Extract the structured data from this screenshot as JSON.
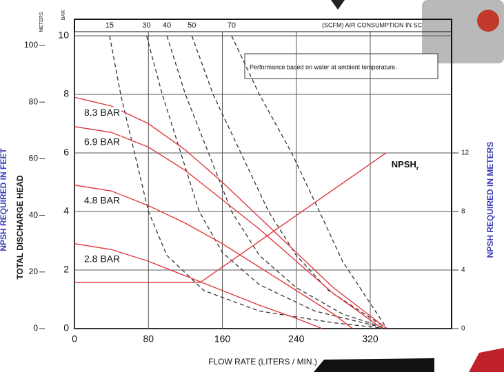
{
  "chart_data": {
    "type": "line",
    "xlabel": "FLOW RATE (LITERS / MIN.)",
    "ylabel": "TOTAL DISCHARGE HEAD",
    "y_unit": "BAR",
    "y3_unit": "METERS",
    "y3label": "NPSH REQUIRED IN FEET",
    "y2label": "NPSH REQUIRED IN METERS",
    "top_label": "(SCFM) AIR CONSUMPTION IN SC",
    "annotation": "Performance  based on water at ambient temperature.",
    "xlim": [
      0,
      408
    ],
    "xticks": [
      0,
      80,
      160,
      240,
      320
    ],
    "ylim": [
      0,
      10
    ],
    "yticks": [
      0,
      2,
      4,
      6,
      8,
      10
    ],
    "y3lim": [
      0,
      103.4
    ],
    "y3ticks": [
      0,
      20,
      40,
      60,
      80,
      100
    ],
    "y2lim": [
      0,
      20
    ],
    "y2ticks": [
      0,
      4,
      8,
      12
    ],
    "grid": true,
    "series": [
      {
        "name": "8.3 BAR",
        "color": "#e0393e",
        "x": [
          0,
          40,
          80,
          120,
          160,
          200,
          240,
          280,
          338
        ],
        "values": [
          7.9,
          7.6,
          7.0,
          6.1,
          5.0,
          3.8,
          2.6,
          1.4,
          0
        ]
      },
      {
        "name": "6.9 BAR",
        "color": "#e0393e",
        "x": [
          0,
          40,
          80,
          120,
          160,
          200,
          240,
          280,
          333
        ],
        "values": [
          6.9,
          6.7,
          6.2,
          5.4,
          4.4,
          3.4,
          2.3,
          1.2,
          0
        ]
      },
      {
        "name": "4.8 BAR",
        "color": "#e0393e",
        "x": [
          0,
          40,
          80,
          120,
          160,
          200,
          240,
          280,
          301
        ],
        "values": [
          4.9,
          4.7,
          4.2,
          3.6,
          2.9,
          2.1,
          1.3,
          0.5,
          0
        ]
      },
      {
        "name": "2.8 BAR",
        "color": "#e0393e",
        "x": [
          0,
          40,
          80,
          120,
          160,
          200,
          240,
          268
        ],
        "values": [
          2.9,
          2.7,
          2.3,
          1.8,
          1.3,
          0.8,
          0.35,
          0
        ]
      },
      {
        "name": "NPSH",
        "subscript": "r",
        "color": "#e0393e",
        "axis": "y2",
        "x": [
          0,
          136,
          337
        ],
        "values": [
          3.15,
          3.15,
          12
        ]
      }
    ],
    "air_series": [
      {
        "name": "15",
        "color": "#333",
        "x": [
          38,
          50,
          65,
          80,
          100,
          140,
          200,
          280,
          338
        ],
        "values": [
          10,
          8,
          6,
          4,
          2.5,
          1.3,
          0.6,
          0.2,
          0
        ]
      },
      {
        "name": "30",
        "color": "#333",
        "x": [
          78,
          95,
          115,
          135,
          160,
          200,
          260,
          338
        ],
        "values": [
          10,
          8,
          6,
          4,
          2.6,
          1.5,
          0.6,
          0
        ]
      },
      {
        "name": "40",
        "color": "#333",
        "x": [
          100,
          120,
          145,
          170,
          200,
          240,
          290,
          338
        ],
        "values": [
          10,
          8,
          6,
          4,
          2.5,
          1.4,
          0.5,
          0
        ]
      },
      {
        "name": "50",
        "color": "#333",
        "x": [
          127,
          150,
          180,
          210,
          240,
          275,
          338
        ],
        "values": [
          10,
          8,
          6,
          4,
          2.5,
          1.3,
          0
        ]
      },
      {
        "name": "70",
        "color": "#333",
        "x": [
          170,
          200,
          235,
          265,
          290,
          338
        ],
        "values": [
          10,
          8,
          6,
          4,
          2.3,
          0
        ]
      }
    ]
  }
}
